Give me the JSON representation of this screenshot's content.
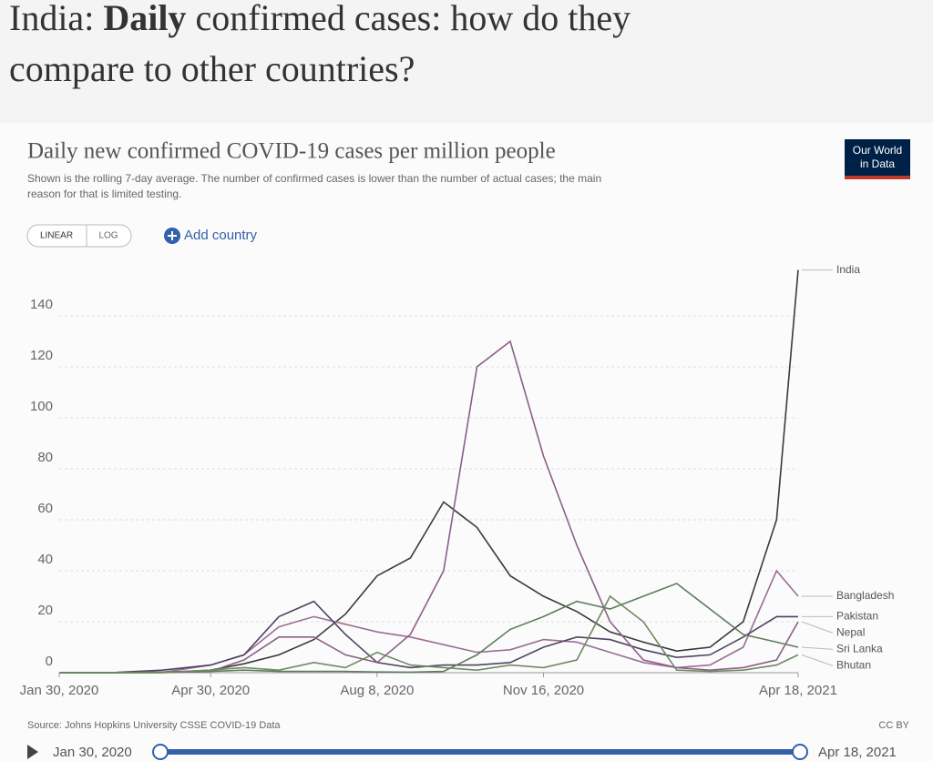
{
  "header": {
    "title_prefix": "India: ",
    "title_bold": "Daily",
    "title_rest": " confirmed cases: how do they",
    "title_line2": "compare to other countries?"
  },
  "controls": {
    "linear": "LINEAR",
    "log": "LOG",
    "add_country": "Add country"
  },
  "logo": {
    "line1": "Our World",
    "line2": "in Data"
  },
  "footer": {
    "source": "Source: Johns Hopkins University CSSE COVID-19 Data",
    "license": "CC BY"
  },
  "timeline": {
    "start": "Jan 30, 2020",
    "end": "Apr 18, 2021"
  },
  "chart_data": {
    "type": "line",
    "title": "Daily new confirmed COVID-19 cases per million people",
    "subtitle_line1": "Shown is the rolling 7-day average. The number of confirmed cases is lower than the number of actual cases; the main",
    "subtitle_line2": "reason for that is limited testing.",
    "log_scale": false,
    "grid": true,
    "x": [
      "2020-01-30",
      "2020-03-01",
      "2020-04-01",
      "2020-04-30",
      "2020-05-20",
      "2020-06-10",
      "2020-07-01",
      "2020-07-20",
      "2020-08-08",
      "2020-08-28",
      "2020-09-17",
      "2020-10-07",
      "2020-10-27",
      "2020-11-16",
      "2020-12-06",
      "2020-12-26",
      "2021-01-15",
      "2021-02-04",
      "2021-02-24",
      "2021-03-16",
      "2021-04-05",
      "2021-04-18"
    ],
    "xlim": [
      "2020-01-30",
      "2021-04-18"
    ],
    "xticks": [
      {
        "value": "2020-01-30",
        "label": "Jan 30, 2020"
      },
      {
        "value": "2020-04-30",
        "label": "Apr 30, 2020"
      },
      {
        "value": "2020-08-08",
        "label": "Aug 8, 2020"
      },
      {
        "value": "2020-11-16",
        "label": "Nov 16, 2020"
      },
      {
        "value": "2021-04-18",
        "label": "Apr 18, 2021"
      }
    ],
    "ylim": [
      0,
      160
    ],
    "yticks": [
      0,
      20,
      40,
      60,
      80,
      100,
      120,
      140
    ],
    "series": [
      {
        "name": "India",
        "color": "#3a3a3a",
        "values": [
          0,
          0,
          0.1,
          1,
          3.5,
          7,
          13,
          23,
          38,
          45,
          67,
          57,
          38,
          30,
          24,
          16,
          12,
          8.5,
          10,
          20,
          60,
          158
        ]
      },
      {
        "name": "Bangladesh",
        "color": "#9a6e94",
        "values": [
          0,
          0,
          0.1,
          3,
          7,
          18,
          22,
          19,
          16,
          14,
          11,
          8,
          9,
          13,
          12,
          8,
          4,
          2,
          3,
          10,
          40,
          30
        ]
      },
      {
        "name": "Pakistan",
        "color": "#4e4463",
        "values": [
          0,
          0,
          1,
          3,
          7,
          22,
          28,
          15,
          4,
          2,
          3,
          3,
          4,
          10,
          14,
          13,
          9,
          6,
          7,
          14,
          22,
          22
        ]
      },
      {
        "name": "Nepal",
        "color": "#8c5f86",
        "values": [
          0,
          0,
          0,
          0.5,
          5,
          14,
          14,
          7,
          4,
          15,
          40,
          120,
          130,
          85,
          50,
          20,
          5,
          2,
          1,
          2,
          5,
          20
        ]
      },
      {
        "name": "Sri Lanka",
        "color": "#5e7d5e",
        "values": [
          0,
          0,
          0.3,
          0.5,
          1,
          0.5,
          0.5,
          0.5,
          0.3,
          0.2,
          0.5,
          7,
          17,
          22,
          28,
          25,
          30,
          35,
          25,
          15,
          12,
          10
        ]
      },
      {
        "name": "Bhutan",
        "color": "#6f8a62",
        "values": [
          0,
          0,
          0,
          1,
          2,
          1,
          4,
          2,
          8,
          3,
          2,
          1,
          3,
          2,
          5,
          30,
          20,
          1,
          0.5,
          1,
          3,
          7
        ]
      }
    ]
  }
}
